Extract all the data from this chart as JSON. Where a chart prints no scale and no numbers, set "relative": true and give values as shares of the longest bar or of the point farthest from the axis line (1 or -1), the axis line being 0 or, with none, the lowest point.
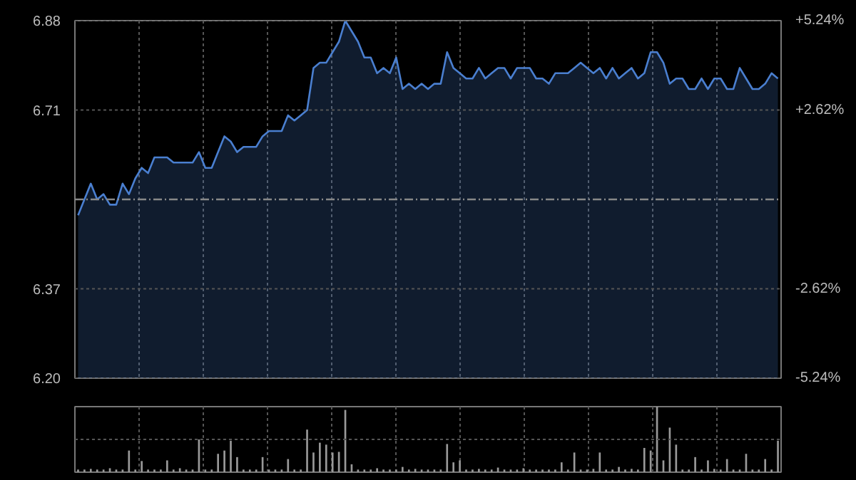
{
  "chart_data": [
    {
      "type": "area",
      "categories": [
        null,
        null,
        null,
        null,
        null,
        null,
        null,
        null,
        null,
        null,
        null,
        null,
        null,
        null,
        null,
        null,
        null,
        null,
        null,
        null,
        null,
        null,
        null,
        null,
        null,
        null,
        null,
        null,
        null,
        null,
        null,
        null,
        null,
        null,
        null,
        null,
        null,
        null,
        null,
        null,
        null,
        null,
        null,
        null,
        null,
        null,
        null,
        null,
        null,
        null,
        null,
        null,
        null,
        null,
        null,
        null,
        null,
        null,
        null,
        null,
        null,
        null,
        null,
        null,
        null,
        null,
        null,
        null,
        null,
        null,
        null,
        null,
        null,
        null,
        null,
        null,
        null,
        null,
        null,
        null,
        null,
        null,
        null,
        null,
        null,
        null,
        null,
        null,
        null,
        null,
        null,
        null,
        null,
        null,
        null,
        null,
        null,
        null,
        null,
        null,
        null,
        null,
        null,
        null,
        null,
        null,
        null,
        null,
        null,
        null,
        null
      ],
      "series": [
        {
          "color": "#4a7fd0",
          "values": [
            6.51,
            6.54,
            6.57,
            6.54,
            6.55,
            6.53,
            6.53,
            6.57,
            6.55,
            6.58,
            6.6,
            6.59,
            6.62,
            6.62,
            6.62,
            6.61,
            6.61,
            6.61,
            6.61,
            6.63,
            6.6,
            6.6,
            6.63,
            6.66,
            6.65,
            6.63,
            6.64,
            6.64,
            6.64,
            6.66,
            6.67,
            6.67,
            6.67,
            6.7,
            6.69,
            6.7,
            6.71,
            6.79,
            6.8,
            6.8,
            6.82,
            6.84,
            6.88,
            6.86,
            6.84,
            6.81,
            6.81,
            6.78,
            6.79,
            6.78,
            6.81,
            6.75,
            6.76,
            6.75,
            6.76,
            6.75,
            6.76,
            6.76,
            6.82,
            6.79,
            6.78,
            6.77,
            6.77,
            6.79,
            6.77,
            6.78,
            6.79,
            6.79,
            6.77,
            6.79,
            6.79,
            6.79,
            6.77,
            6.77,
            6.76,
            6.78,
            6.78,
            6.78,
            6.79,
            6.8,
            6.79,
            6.78,
            6.79,
            6.77,
            6.79,
            6.77,
            6.78,
            6.79,
            6.77,
            6.78,
            6.82,
            6.82,
            6.8,
            6.76,
            6.77,
            6.77,
            6.75,
            6.75,
            6.77,
            6.75,
            6.77,
            6.77,
            6.75,
            6.75,
            6.79,
            6.77,
            6.75,
            6.75,
            6.76,
            6.78,
            6.77
          ]
        }
      ],
      "ylim": [
        6.2,
        6.88
      ],
      "yticks": [
        {
          "value": 6.2,
          "label": "6.20"
        },
        6.37,
        6.71,
        6.88
      ],
      "y2lim": [
        -5.24,
        5.24
      ],
      "y2ticks": [
        {
          "value": -5.24,
          "label": "-5.24%"
        },
        {
          "value": -2.62,
          "label": "-2.62%"
        },
        {
          "value": 2.62,
          "label": "+2.62%"
        },
        {
          "value": 5.24,
          "label": "+5.24%"
        }
      ],
      "ref_lines": [
        {
          "axis": "y",
          "value": 6.54,
          "label": null,
          "line_style": "dashed"
        }
      ],
      "grid": true,
      "tick_labels": "y"
    },
    {
      "type": "bar",
      "relative": true,
      "categories": [
        null,
        null,
        null,
        null,
        null,
        null,
        null,
        null,
        null,
        null,
        null,
        null,
        null,
        null,
        null,
        null,
        null,
        null,
        null,
        null,
        null,
        null,
        null,
        null,
        null,
        null,
        null,
        null,
        null,
        null,
        null,
        null,
        null,
        null,
        null,
        null,
        null,
        null,
        null,
        null,
        null,
        null,
        null,
        null,
        null,
        null,
        null,
        null,
        null,
        null,
        null,
        null,
        null,
        null,
        null,
        null,
        null,
        null,
        null,
        null,
        null,
        null,
        null,
        null,
        null,
        null,
        null,
        null,
        null,
        null,
        null,
        null,
        null,
        null,
        null,
        null,
        null,
        null,
        null,
        null,
        null,
        null,
        null,
        null,
        null,
        null,
        null,
        null,
        null,
        null,
        null,
        null,
        null,
        null,
        null,
        null,
        null,
        null,
        null,
        null,
        null,
        null,
        null,
        null,
        null,
        null,
        null,
        null,
        null,
        null,
        null
      ],
      "series": [
        {
          "color": "#999999",
          "values": [
            0.04,
            0.04,
            0.05,
            0.04,
            0.04,
            0.06,
            0.04,
            0.04,
            0.33,
            0.04,
            0.17,
            0.04,
            0.04,
            0.04,
            0.18,
            0.04,
            0.06,
            0.04,
            0.04,
            0.5,
            0.04,
            0.04,
            0.28,
            0.33,
            0.48,
            0.23,
            0.04,
            0.04,
            0.04,
            0.23,
            0.04,
            0.04,
            0.04,
            0.2,
            0.04,
            0.04,
            0.65,
            0.3,
            0.45,
            0.42,
            0.3,
            0.31,
            0.95,
            0.12,
            0.04,
            0.04,
            0.04,
            0.06,
            0.04,
            0.04,
            0.04,
            0.08,
            0.04,
            0.05,
            0.04,
            0.04,
            0.04,
            0.04,
            0.43,
            0.15,
            0.18,
            0.04,
            0.04,
            0.05,
            0.04,
            0.04,
            0.07,
            0.04,
            0.04,
            0.04,
            0.06,
            0.04,
            0.04,
            0.04,
            0.04,
            0.04,
            0.15,
            0.04,
            0.3,
            0.04,
            0.04,
            0.05,
            0.3,
            0.04,
            0.04,
            0.08,
            0.04,
            0.05,
            0.04,
            0.37,
            0.33,
            1.0,
            0.18,
            0.68,
            0.42,
            0.04,
            0.04,
            0.23,
            0.04,
            0.18,
            0.05,
            0.04,
            0.2,
            0.04,
            0.04,
            0.28,
            0.04,
            0.04,
            0.2,
            0.04,
            0.48
          ]
        }
      ],
      "grid": true,
      "tick_labels": false
    }
  ]
}
